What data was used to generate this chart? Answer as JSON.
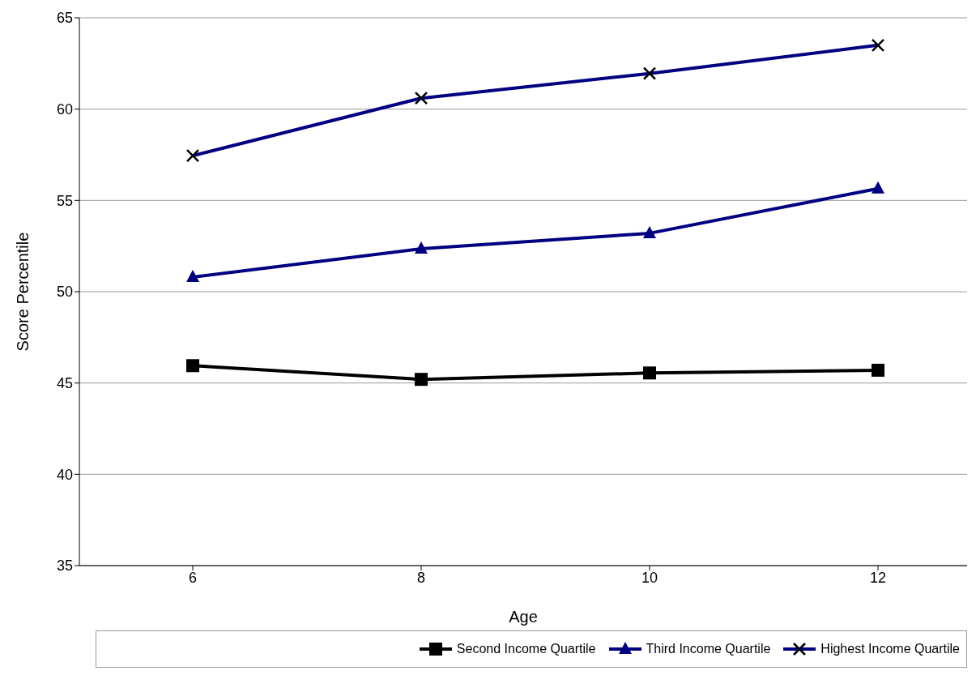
{
  "chart_data": {
    "type": "line",
    "xlabel": "Age",
    "ylabel": "Score Percentile",
    "categories": [
      "6",
      "8",
      "10",
      "12"
    ],
    "series": [
      {
        "name": "Second Income Quartile",
        "color": "#000000",
        "marker": "square",
        "values": [
          45.95,
          45.2,
          45.55,
          45.7
        ]
      },
      {
        "name": "Third Income Quartile",
        "color": "#000080",
        "marker": "triangle",
        "values": [
          50.8,
          52.35,
          53.2,
          55.65
        ]
      },
      {
        "name": "Highest Income Quartile",
        "color": "#000080",
        "marker": "cross",
        "values": [
          57.45,
          60.6,
          61.95,
          63.5
        ]
      }
    ],
    "ylim": [
      35,
      65
    ],
    "yticks": [
      35,
      40,
      45,
      50,
      55,
      60,
      65
    ],
    "grid": "y",
    "legend": "bottom",
    "line_style": "solid"
  }
}
